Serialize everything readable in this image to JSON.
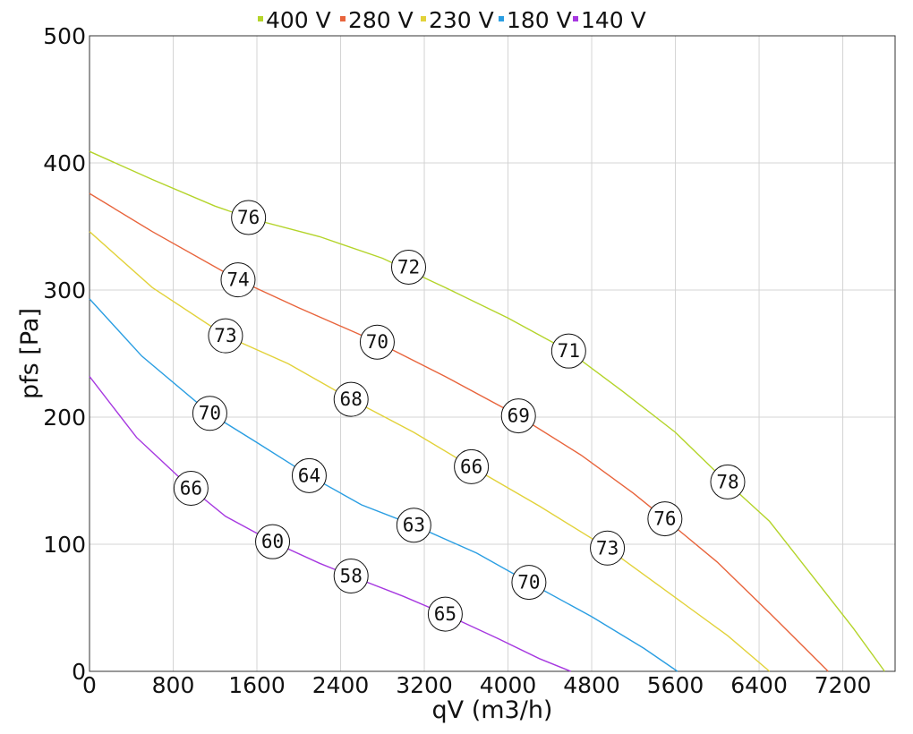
{
  "chart_data": {
    "type": "line",
    "xlabel": "qV (m3/h)",
    "ylabel": "pfs [Pa]",
    "xlim": [
      0,
      7700
    ],
    "ylim": [
      0,
      500
    ],
    "xticks": [
      0,
      800,
      1600,
      2400,
      3200,
      4000,
      4800,
      5600,
      6400,
      7200
    ],
    "yticks": [
      0,
      100,
      200,
      300,
      400,
      500
    ],
    "grid": true,
    "legend_position": "top",
    "series": [
      {
        "name": "400 V",
        "color": "#b4d42a",
        "x": [
          0,
          600,
          1200,
          1550,
          2200,
          2800,
          3400,
          4000,
          4580,
          5100,
          5600,
          6100,
          6500,
          6900,
          7300,
          7600
        ],
        "y": [
          409,
          387,
          366,
          356,
          342,
          325,
          302,
          278,
          252,
          220,
          188,
          148,
          118,
          76,
          34,
          0
        ],
        "markers": [
          {
            "x": 1520,
            "y": 357,
            "label": "76"
          },
          {
            "x": 3050,
            "y": 318,
            "label": "72"
          },
          {
            "x": 4580,
            "y": 252,
            "label": "71"
          },
          {
            "x": 6100,
            "y": 149,
            "label": "78"
          }
        ]
      },
      {
        "name": "280 V",
        "color": "#e8643c",
        "x": [
          0,
          600,
          1420,
          2000,
          2750,
          3400,
          4100,
          4700,
          5200,
          5500,
          6000,
          6500,
          7060
        ],
        "y": [
          376,
          346,
          308,
          286,
          259,
          232,
          201,
          170,
          140,
          120,
          86,
          46,
          0
        ],
        "markers": [
          {
            "x": 1420,
            "y": 308,
            "label": "74"
          },
          {
            "x": 2750,
            "y": 259,
            "label": "70"
          },
          {
            "x": 4100,
            "y": 201,
            "label": "69"
          },
          {
            "x": 5500,
            "y": 120,
            "label": "76"
          }
        ]
      },
      {
        "name": "230 V",
        "color": "#e2d23a",
        "x": [
          0,
          600,
          1300,
          1900,
          2500,
          3100,
          3650,
          4300,
          4950,
          5600,
          6100,
          6500
        ],
        "y": [
          346,
          302,
          264,
          242,
          214,
          188,
          161,
          130,
          97,
          58,
          28,
          0
        ],
        "markers": [
          {
            "x": 1300,
            "y": 264,
            "label": "73"
          },
          {
            "x": 2500,
            "y": 214,
            "label": "68"
          },
          {
            "x": 3650,
            "y": 161,
            "label": "66"
          },
          {
            "x": 4950,
            "y": 97,
            "label": "73"
          }
        ]
      },
      {
        "name": "180 V",
        "color": "#2a9ee2",
        "x": [
          0,
          500,
          1150,
          1600,
          2100,
          2600,
          3100,
          3700,
          4200,
          4800,
          5300,
          5620
        ],
        "y": [
          293,
          248,
          203,
          180,
          154,
          131,
          115,
          93,
          70,
          43,
          18,
          0
        ],
        "markers": [
          {
            "x": 1150,
            "y": 203,
            "label": "70"
          },
          {
            "x": 2100,
            "y": 154,
            "label": "64"
          },
          {
            "x": 3100,
            "y": 115,
            "label": "63"
          },
          {
            "x": 4200,
            "y": 70,
            "label": "70"
          }
        ]
      },
      {
        "name": "140 V",
        "color": "#a638e0",
        "x": [
          0,
          450,
          970,
          1300,
          1750,
          2200,
          2500,
          3000,
          3400,
          3900,
          4300,
          4600
        ],
        "y": [
          232,
          184,
          144,
          122,
          102,
          85,
          75,
          59,
          45,
          26,
          10,
          0
        ],
        "markers": [
          {
            "x": 970,
            "y": 144,
            "label": "66"
          },
          {
            "x": 1750,
            "y": 102,
            "label": "60"
          },
          {
            "x": 2500,
            "y": 75,
            "label": "58"
          },
          {
            "x": 3400,
            "y": 45,
            "label": "65"
          }
        ]
      }
    ]
  }
}
